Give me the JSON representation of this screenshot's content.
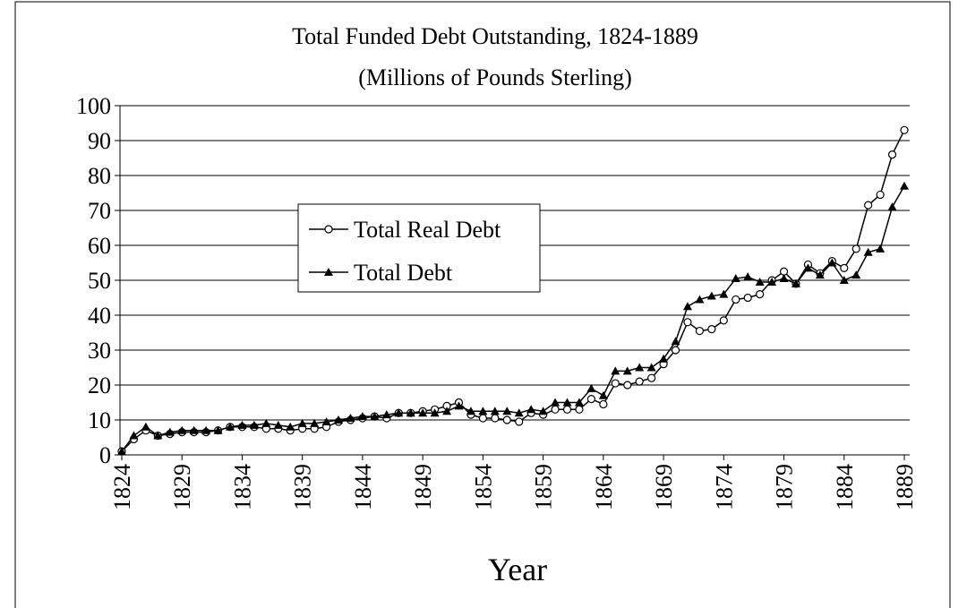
{
  "chart_data": {
    "type": "line",
    "title": "Total Funded Debt Outstanding, 1824-1889",
    "subtitle": "(Millions of Pounds Sterling)",
    "x_label": "Year",
    "x": [
      1824,
      1825,
      1826,
      1827,
      1828,
      1829,
      1830,
      1831,
      1832,
      1833,
      1834,
      1835,
      1836,
      1837,
      1838,
      1839,
      1840,
      1841,
      1842,
      1843,
      1844,
      1845,
      1846,
      1847,
      1848,
      1849,
      1850,
      1851,
      1852,
      1853,
      1854,
      1855,
      1856,
      1857,
      1858,
      1859,
      1860,
      1861,
      1862,
      1863,
      1864,
      1865,
      1866,
      1867,
      1868,
      1869,
      1870,
      1871,
      1872,
      1873,
      1874,
      1875,
      1876,
      1877,
      1878,
      1879,
      1880,
      1881,
      1882,
      1883,
      1884,
      1885,
      1886,
      1887,
      1888,
      1889
    ],
    "series": [
      {
        "name": "Total Real Debt",
        "color": "#000000",
        "marker": "circle",
        "values": [
          1,
          4.5,
          7,
          5.5,
          6,
          6.5,
          6.5,
          6.5,
          7,
          8,
          8,
          8,
          7.5,
          7.5,
          7,
          7.5,
          7.5,
          8,
          9.5,
          10,
          10.5,
          11,
          10.5,
          12,
          12,
          12.5,
          13,
          14,
          15,
          11.5,
          10.5,
          10.5,
          10,
          9.5,
          12,
          11.5,
          13,
          13,
          13,
          16,
          14.5,
          20.5,
          20,
          21,
          22,
          26,
          30,
          38,
          35.5,
          36,
          38.5,
          44.5,
          45,
          46,
          50,
          52.5,
          49,
          54.5,
          52,
          55.5,
          53.5,
          59,
          71.5,
          74.5,
          86,
          93
        ]
      },
      {
        "name": "Total Debt",
        "color": "#000000",
        "marker": "triangle",
        "values": [
          1,
          5.5,
          8,
          5.5,
          6.5,
          7,
          7,
          7,
          7,
          8,
          8.5,
          8.5,
          9,
          8.5,
          8,
          9,
          9,
          9.5,
          10,
          10.5,
          11,
          11,
          11.5,
          12,
          12,
          12,
          12,
          12.5,
          14,
          12.5,
          12.5,
          12.5,
          12.5,
          12,
          13,
          12.5,
          15,
          15,
          15,
          19,
          17,
          24,
          24,
          25,
          25,
          27.5,
          32.5,
          42.5,
          44.5,
          45.5,
          46,
          50.5,
          51,
          49.5,
          49.5,
          50.5,
          49,
          53.5,
          51.5,
          55,
          50,
          51.5,
          58,
          59,
          71,
          77
        ]
      }
    ],
    "xlim": [
      1824,
      1889
    ],
    "xticks": [
      1824,
      1829,
      1834,
      1839,
      1844,
      1849,
      1854,
      1859,
      1864,
      1869,
      1874,
      1879,
      1884,
      1889
    ],
    "ylim": [
      0,
      100
    ],
    "yticks": [
      0,
      10,
      20,
      30,
      40,
      50,
      60,
      70,
      80,
      90,
      100
    ],
    "grid": true,
    "legend": "center-left"
  }
}
